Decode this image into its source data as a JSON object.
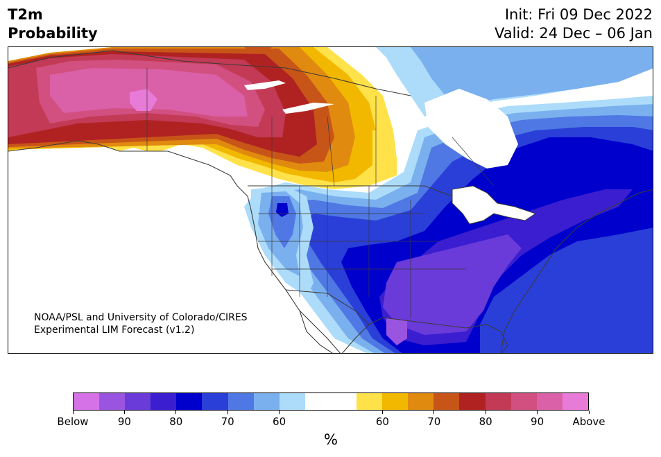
{
  "header": {
    "variable": "T2m",
    "product": "Probability",
    "init": "Init: Fri 09 Dec 2022",
    "valid": "Valid: 24 Dec – 06 Jan"
  },
  "credit": {
    "line1": "NOAA/PSL and University of Colorado/CIRES",
    "line2": "Experimental LIM Forecast (v1.2)"
  },
  "colorbar": {
    "colors": [
      "#d672e8",
      "#9a55e0",
      "#6a3bd8",
      "#3a1ed0",
      "#0000cc",
      "#2a3fd8",
      "#4f78e4",
      "#7ab0ee",
      "#acdcfa",
      "#ffffff",
      "#ffffff",
      "#ffe24a",
      "#f2b800",
      "#e08a10",
      "#c85518",
      "#b02222",
      "#c23a55",
      "#d2507f",
      "#da60a8",
      "#e87ad8"
    ],
    "tick_labels": [
      "Below",
      "90",
      "80",
      "70",
      "60",
      "60",
      "70",
      "80",
      "90",
      "Above"
    ],
    "units": "%"
  },
  "map": {
    "land_base_color": "#ffffff",
    "coast_color": "#3a3a3a"
  }
}
